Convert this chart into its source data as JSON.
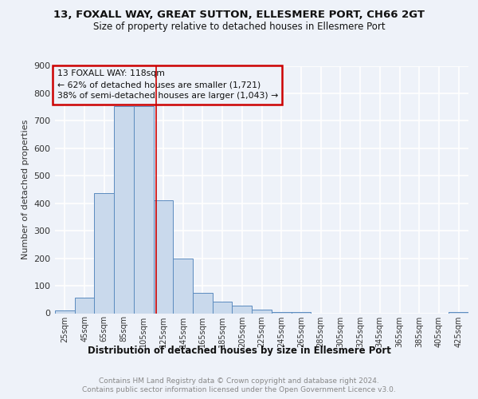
{
  "title1": "13, FOXALL WAY, GREAT SUTTON, ELLESMERE PORT, CH66 2GT",
  "title2": "Size of property relative to detached houses in Ellesmere Port",
  "xlabel": "Distribution of detached houses by size in Ellesmere Port",
  "ylabel": "Number of detached properties",
  "bar_centers": [
    25,
    45,
    65,
    85,
    105,
    125,
    145,
    165,
    185,
    205,
    225,
    245,
    265,
    285,
    305,
    325,
    345,
    365,
    385,
    405,
    425
  ],
  "bar_heights": [
    10,
    57,
    438,
    753,
    753,
    410,
    198,
    75,
    42,
    27,
    12,
    5,
    5,
    0,
    0,
    0,
    0,
    0,
    0,
    0,
    5
  ],
  "bar_color": "#c9d9ec",
  "bar_edge_color": "#5b8bbf",
  "property_size": 118,
  "annotation_title": "13 FOXALL WAY: 118sqm",
  "annotation_line1": "← 62% of detached houses are smaller (1,721)",
  "annotation_line2": "38% of semi-detached houses are larger (1,043) →",
  "vline_color": "#cc0000",
  "annotation_box_edge": "#cc0000",
  "ylim": [
    0,
    900
  ],
  "yticks": [
    0,
    100,
    200,
    300,
    400,
    500,
    600,
    700,
    800,
    900
  ],
  "footer1": "Contains HM Land Registry data © Crown copyright and database right 2024.",
  "footer2": "Contains public sector information licensed under the Open Government Licence v3.0.",
  "background_color": "#eef2f9",
  "grid_color": "#ffffff"
}
